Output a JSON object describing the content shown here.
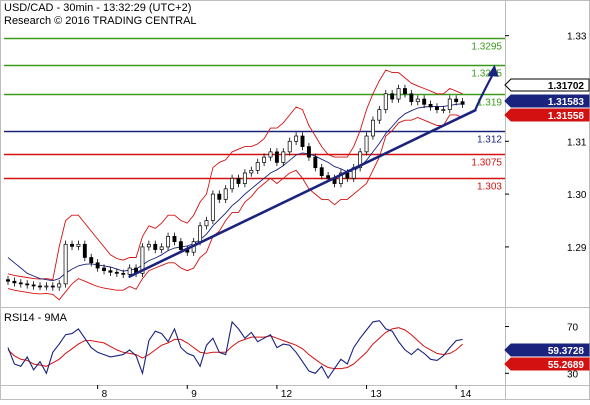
{
  "header": {
    "symbol_line": "USD/CAD - 30min - 13:32:29 (UTC+2)",
    "credit_line": "Research © 2016 TRADING CENTRAL"
  },
  "rsi_panel": {
    "title": "RSI14 - 9MA",
    "rsi_value_tag": "59.3728",
    "ma_value_tag": "55.2689"
  },
  "colors": {
    "resistance": "#3a9a1e",
    "pivot": "#1a237e",
    "support": "#d41111",
    "bollinger": "#d41111",
    "ma": "#1a237e",
    "candle": "#000000",
    "rsi": "#1a237e",
    "rsi_ma": "#d41111",
    "tag_last": "#000000",
    "tag_blue": "#1a237e",
    "tag_red": "#d41111"
  },
  "chart_data": {
    "type": "line",
    "subtype": "candlestick with indicators",
    "title": "USD/CAD - 30min",
    "y_axis": {
      "min": 1.279,
      "max": 1.336,
      "ticks": [
        1.29,
        1.3,
        1.31,
        1.33
      ],
      "tick_labels": [
        "1.29",
        "1.30",
        "1.31",
        "1.33"
      ],
      "side": "right"
    },
    "x_axis": {
      "tick_labels": [
        "8",
        "9",
        "12",
        "13",
        "14"
      ],
      "tick_index": [
        14,
        28,
        42,
        56,
        70
      ],
      "n_bars": 78
    },
    "levels": [
      {
        "label": "1.3295",
        "value": 1.3295,
        "kind": "resistance"
      },
      {
        "label": "1.3245",
        "value": 1.3245,
        "kind": "resistance"
      },
      {
        "label": "1.319",
        "value": 1.319,
        "kind": "resistance"
      },
      {
        "label": "1.312",
        "value": 1.312,
        "kind": "pivot"
      },
      {
        "label": "1.3075",
        "value": 1.3075,
        "kind": "support"
      },
      {
        "label": "1.303",
        "value": 1.303,
        "kind": "support"
      }
    ],
    "price_tags": [
      {
        "label": "1.31702",
        "value": 1.31702,
        "kind": "last"
      },
      {
        "label": "1.31583",
        "value": 1.31583,
        "kind": "blue"
      },
      {
        "label": "1.31558",
        "value": 1.31558,
        "kind": "red"
      }
    ],
    "close": [
      1.2835,
      1.2832,
      1.283,
      1.2828,
      1.2826,
      1.2825,
      1.2826,
      1.2824,
      1.283,
      1.2905,
      1.2901,
      1.2905,
      1.288,
      1.287,
      1.286,
      1.2855,
      1.2852,
      1.285,
      1.2848,
      1.286,
      1.285,
      1.29,
      1.2905,
      1.2895,
      1.29,
      1.292,
      1.291,
      1.2895,
      1.289,
      1.291,
      1.294,
      1.295,
      1.3,
      1.299,
      1.301,
      1.303,
      1.302,
      1.304,
      1.3045,
      1.306,
      1.307,
      1.308,
      1.306,
      1.308,
      1.31,
      1.311,
      1.309,
      1.307,
      1.305,
      1.3035,
      1.303,
      1.302,
      1.304,
      1.303,
      1.305,
      1.308,
      1.311,
      1.314,
      1.316,
      1.319,
      1.318,
      1.32,
      1.319,
      1.3175,
      1.318,
      1.317,
      1.3165,
      1.316,
      1.316,
      1.318,
      1.3175,
      1.317
    ],
    "trendline": {
      "from": {
        "index": 19,
        "value": 1.2844
      },
      "to": {
        "index": 73,
        "value": 1.3159
      }
    },
    "forecast_arrow": {
      "from": {
        "index": 73,
        "value": 1.316
      },
      "to": {
        "index": 76,
        "value": 1.3245
      }
    },
    "bollinger": {
      "upper": [
        1.2849,
        1.2846,
        1.2844,
        1.2842,
        1.284,
        1.2839,
        1.284,
        1.2838,
        1.29,
        1.295,
        1.296,
        1.296,
        1.2945,
        1.293,
        1.2915,
        1.29,
        1.2885,
        1.2878,
        1.2875,
        1.288,
        1.288,
        1.292,
        1.294,
        1.2935,
        1.2945,
        1.296,
        1.296,
        1.295,
        1.2945,
        1.296,
        1.2985,
        1.3,
        1.305,
        1.306,
        1.3065,
        1.308,
        1.3085,
        1.309,
        1.309,
        1.3095,
        1.3105,
        1.3125,
        1.3125,
        1.3135,
        1.315,
        1.3165,
        1.316,
        1.313,
        1.311,
        1.309,
        1.3075,
        1.307,
        1.307,
        1.307,
        1.309,
        1.312,
        1.316,
        1.319,
        1.3215,
        1.3235,
        1.323,
        1.323,
        1.322,
        1.321,
        1.3205,
        1.32,
        1.3195,
        1.319,
        1.319,
        1.32,
        1.3195,
        1.319
      ],
      "lower": [
        1.2821,
        1.2818,
        1.2816,
        1.2814,
        1.2812,
        1.2811,
        1.2812,
        1.281,
        1.28,
        1.2815,
        1.283,
        1.284,
        1.2835,
        1.283,
        1.2825,
        1.2822,
        1.282,
        1.2818,
        1.2818,
        1.2825,
        1.282,
        1.284,
        1.2855,
        1.286,
        1.2865,
        1.287,
        1.287,
        1.286,
        1.2855,
        1.286,
        1.288,
        1.289,
        1.292,
        1.293,
        1.295,
        1.2965,
        1.2965,
        1.2985,
        1.2995,
        1.301,
        1.302,
        1.303,
        1.302,
        1.303,
        1.304,
        1.3045,
        1.303,
        1.301,
        1.3,
        1.299,
        1.299,
        1.298,
        1.299,
        1.299,
        1.3,
        1.301,
        1.302,
        1.3045,
        1.307,
        1.311,
        1.312,
        1.3135,
        1.314,
        1.314,
        1.3145,
        1.314,
        1.3135,
        1.313,
        1.313,
        1.315,
        1.315,
        1.3145
      ]
    },
    "moving_average": [
      1.288,
      1.287,
      1.286,
      1.285,
      1.2845,
      1.284,
      1.2838,
      1.2836,
      1.284,
      1.285,
      1.2858,
      1.2864,
      1.2867,
      1.2868,
      1.2866,
      1.2864,
      1.2862,
      1.2858,
      1.2854,
      1.2856,
      1.2858,
      1.2866,
      1.2874,
      1.2879,
      1.2885,
      1.2893,
      1.2898,
      1.29,
      1.2902,
      1.2906,
      1.2914,
      1.2924,
      1.294,
      1.2952,
      1.2964,
      1.2978,
      1.2988,
      1.3,
      1.301,
      1.302,
      1.303,
      1.304,
      1.3046,
      1.3054,
      1.3064,
      1.3074,
      1.3078,
      1.3076,
      1.3072,
      1.3066,
      1.306,
      1.3052,
      1.3048,
      1.3042,
      1.3044,
      1.3052,
      1.3064,
      1.308,
      1.3096,
      1.3115,
      1.3128,
      1.3142,
      1.3152,
      1.3158,
      1.3163,
      1.3165,
      1.3166,
      1.3166,
      1.3166,
      1.3168,
      1.317,
      1.3171
    ],
    "rsi": {
      "y_ticks": [
        30,
        70
      ],
      "tick_labels": [
        "30",
        "70"
      ],
      "y_range": [
        20,
        85
      ],
      "values": [
        52,
        38,
        36,
        44,
        33,
        40,
        30,
        48,
        55,
        63,
        64,
        68,
        60,
        52,
        48,
        46,
        44,
        45,
        46,
        50,
        45,
        30,
        58,
        66,
        64,
        57,
        68,
        52,
        47,
        45,
        36,
        54,
        60,
        48,
        46,
        74,
        68,
        60,
        65,
        57,
        60,
        63,
        52,
        55,
        54,
        48,
        40,
        32,
        30,
        36,
        26,
        34,
        42,
        38,
        52,
        60,
        67,
        74,
        75,
        68,
        66,
        57,
        50,
        46,
        51,
        47,
        42,
        41,
        45,
        52,
        58,
        59
      ],
      "ma_values": [
        50,
        45,
        42,
        41,
        38,
        37,
        36,
        39,
        42,
        47,
        51,
        55,
        58,
        58,
        57,
        56,
        53,
        50,
        48,
        47,
        46,
        43,
        46,
        50,
        54,
        56,
        59,
        59,
        56,
        52,
        48,
        47,
        48,
        48,
        48,
        53,
        57,
        59,
        61,
        61,
        61,
        62,
        60,
        58,
        56,
        54,
        51,
        46,
        42,
        38,
        35,
        34,
        34,
        35,
        38,
        43,
        48,
        55,
        60,
        65,
        68,
        69,
        67,
        63,
        58,
        53,
        50,
        47,
        46,
        47,
        50,
        55
      ]
    }
  }
}
